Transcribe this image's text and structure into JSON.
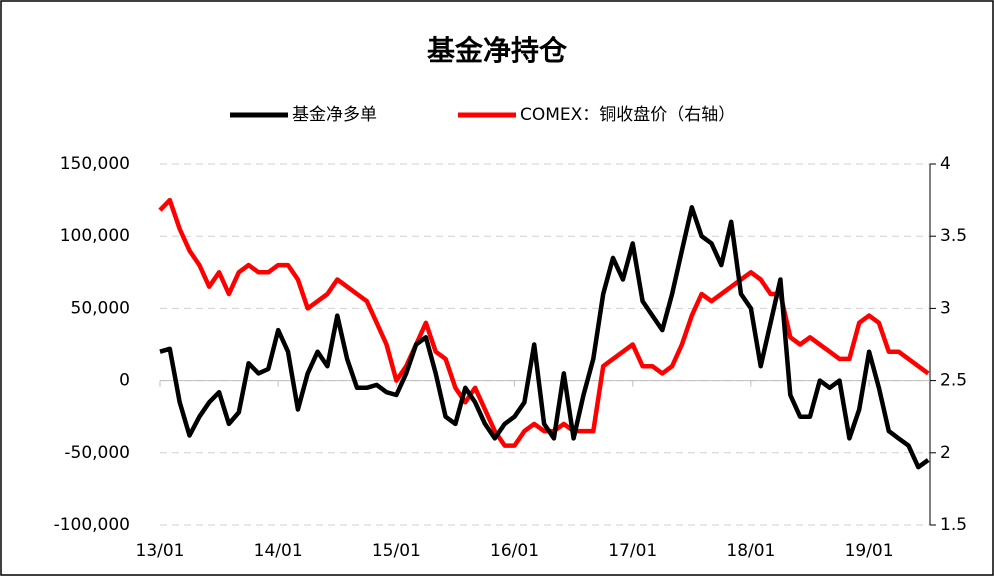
{
  "chart_data": {
    "type": "line",
    "title": "基金净持仓",
    "x": [
      0,
      1,
      2,
      3,
      4,
      5,
      6,
      7,
      8,
      9,
      10,
      11,
      12,
      13,
      14,
      15,
      16,
      17,
      18,
      19,
      20,
      21,
      22,
      23,
      24,
      25,
      26,
      27,
      28,
      29,
      30,
      31,
      32,
      33,
      34,
      35,
      36,
      37,
      38,
      39,
      40,
      41,
      42,
      43,
      44,
      45,
      46,
      47,
      48,
      49,
      50,
      51,
      52,
      53,
      54,
      55,
      56,
      57,
      58,
      59,
      60,
      61,
      62,
      63,
      64,
      65,
      66,
      67,
      68,
      69,
      70,
      71,
      72,
      73,
      74,
      75,
      76,
      77,
      78
    ],
    "xlim": [
      0,
      79
    ],
    "xticks": [
      {
        "value": 0,
        "label": "13/01"
      },
      {
        "value": 12,
        "label": "14/01"
      },
      {
        "value": 24,
        "label": "15/01"
      },
      {
        "value": 36,
        "label": "16/01"
      },
      {
        "value": 48,
        "label": "17/01"
      },
      {
        "value": 60,
        "label": "18/01"
      },
      {
        "value": 72,
        "label": "19/01"
      }
    ],
    "ylim": [
      -100000,
      150000
    ],
    "yticks": [
      {
        "value": -100000,
        "label": "-100,000"
      },
      {
        "value": -50000,
        "label": "-50,000"
      },
      0,
      {
        "value": 50000,
        "label": "50,000"
      },
      {
        "value": 100000,
        "label": "100,000"
      },
      {
        "value": 150000,
        "label": "150,000"
      }
    ],
    "y2lim": [
      1.5,
      4
    ],
    "y2ticks": [
      1.5,
      2,
      2.5,
      3,
      3.5,
      4
    ],
    "grid": true,
    "legend": "top",
    "series": [
      {
        "name": "基金净多单",
        "color": "#000000",
        "values": [
          20000,
          22000,
          -15000,
          -38000,
          -25000,
          -15000,
          -8000,
          -30000,
          -22000,
          12000,
          5000,
          8000,
          35000,
          20000,
          -20000,
          5000,
          20000,
          10000,
          45000,
          15000,
          -5000,
          -5000,
          -3000,
          -8000,
          -10000,
          5000,
          25000,
          30000,
          5000,
          -25000,
          -30000,
          -5000,
          -15000,
          -30000,
          -40000,
          -30000,
          -25000,
          -15000,
          25000,
          -30000,
          -40000,
          5000,
          -40000,
          -10000,
          15000,
          60000,
          85000,
          70000,
          95000,
          55000,
          45000,
          35000,
          60000,
          90000,
          120000,
          100000,
          95000,
          80000,
          110000,
          60000,
          50000,
          10000,
          40000,
          70000,
          -10000,
          -25000,
          -25000,
          0,
          -5000,
          0,
          -40000,
          -20000,
          20000,
          -5000,
          -35000,
          -40000,
          -45000,
          -60000,
          -55000
        ]
      },
      {
        "name": "COMEX：铜收盘价（右轴）",
        "color": "#ff0000",
        "axis": "y2",
        "values": [
          3.68,
          3.75,
          3.55,
          3.4,
          3.3,
          3.15,
          3.25,
          3.1,
          3.25,
          3.3,
          3.25,
          3.25,
          3.3,
          3.3,
          3.2,
          3.0,
          3.05,
          3.1,
          3.2,
          3.15,
          3.1,
          3.05,
          2.9,
          2.75,
          2.5,
          2.6,
          2.75,
          2.9,
          2.7,
          2.65,
          2.45,
          2.35,
          2.45,
          2.3,
          2.15,
          2.05,
          2.05,
          2.15,
          2.2,
          2.15,
          2.15,
          2.2,
          2.15,
          2.15,
          2.15,
          2.6,
          2.65,
          2.7,
          2.75,
          2.6,
          2.6,
          2.55,
          2.6,
          2.75,
          2.95,
          3.1,
          3.05,
          3.1,
          3.15,
          3.2,
          3.25,
          3.2,
          3.1,
          3.1,
          2.8,
          2.75,
          2.8,
          2.75,
          2.7,
          2.65,
          2.65,
          2.9,
          2.95,
          2.9,
          2.7,
          2.7,
          2.65,
          2.6,
          2.55
        ]
      }
    ]
  }
}
